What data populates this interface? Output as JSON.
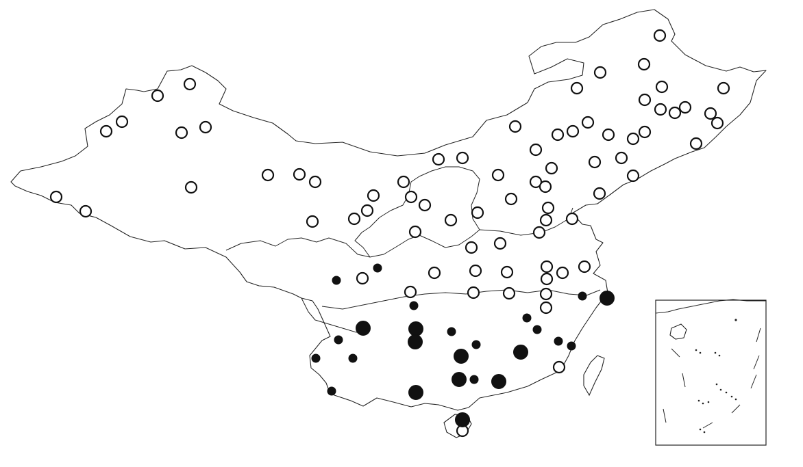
{
  "map": {
    "colors": {
      "outline": "#222222",
      "open_marker": "#ffffff",
      "solid_marker": "#111111"
    },
    "legend": null,
    "stations_open": [
      [
        963,
        52
      ],
      [
        230,
        140
      ],
      [
        277,
        123
      ],
      [
        155,
        192
      ],
      [
        178,
        178
      ],
      [
        265,
        194
      ],
      [
        300,
        186
      ],
      [
        279,
        274
      ],
      [
        82,
        288
      ],
      [
        125,
        309
      ],
      [
        391,
        256
      ],
      [
        437,
        255
      ],
      [
        460,
        266
      ],
      [
        456,
        324
      ],
      [
        876,
        106
      ],
      [
        940,
        94
      ],
      [
        842,
        129
      ],
      [
        966,
        127
      ],
      [
        941,
        146
      ],
      [
        964,
        160
      ],
      [
        985,
        165
      ],
      [
        1000,
        157
      ],
      [
        1056,
        129
      ],
      [
        1037,
        166
      ],
      [
        1047,
        180
      ],
      [
        752,
        185
      ],
      [
        814,
        197
      ],
      [
        836,
        192
      ],
      [
        858,
        179
      ],
      [
        888,
        197
      ],
      [
        924,
        203
      ],
      [
        941,
        193
      ],
      [
        1016,
        210
      ],
      [
        640,
        233
      ],
      [
        675,
        231
      ],
      [
        782,
        219
      ],
      [
        805,
        246
      ],
      [
        868,
        237
      ],
      [
        907,
        231
      ],
      [
        924,
        257
      ],
      [
        875,
        283
      ],
      [
        727,
        256
      ],
      [
        782,
        266
      ],
      [
        796,
        273
      ],
      [
        746,
        291
      ],
      [
        800,
        304
      ],
      [
        835,
        320
      ],
      [
        797,
        322
      ],
      [
        787,
        340
      ],
      [
        589,
        266
      ],
      [
        545,
        286
      ],
      [
        600,
        288
      ],
      [
        536,
        308
      ],
      [
        517,
        320
      ],
      [
        620,
        300
      ],
      [
        658,
        322
      ],
      [
        606,
        339
      ],
      [
        697,
        311
      ],
      [
        688,
        362
      ],
      [
        730,
        356
      ],
      [
        529,
        407
      ],
      [
        634,
        399
      ],
      [
        694,
        396
      ],
      [
        740,
        398
      ],
      [
        798,
        390
      ],
      [
        821,
        399
      ],
      [
        853,
        390
      ],
      [
        798,
        408
      ],
      [
        599,
        427
      ],
      [
        691,
        428
      ],
      [
        743,
        429
      ],
      [
        797,
        430
      ],
      [
        797,
        450
      ],
      [
        816,
        537
      ],
      [
        675,
        630
      ]
    ],
    "stations_solid_small": [
      [
        551,
        392
      ],
      [
        491,
        410
      ],
      [
        604,
        447
      ],
      [
        850,
        433
      ],
      [
        769,
        465
      ],
      [
        784,
        482
      ],
      [
        659,
        485
      ],
      [
        695,
        504
      ],
      [
        494,
        497
      ],
      [
        515,
        524
      ],
      [
        461,
        524
      ],
      [
        815,
        499
      ],
      [
        834,
        506
      ],
      [
        692,
        555
      ],
      [
        484,
        572
      ]
    ],
    "stations_solid_large": [
      [
        886,
        436
      ],
      [
        530,
        480
      ],
      [
        607,
        481
      ],
      [
        606,
        500
      ],
      [
        673,
        521
      ],
      [
        760,
        515
      ],
      [
        670,
        555
      ],
      [
        728,
        558
      ],
      [
        607,
        574
      ],
      [
        675,
        614
      ]
    ]
  }
}
